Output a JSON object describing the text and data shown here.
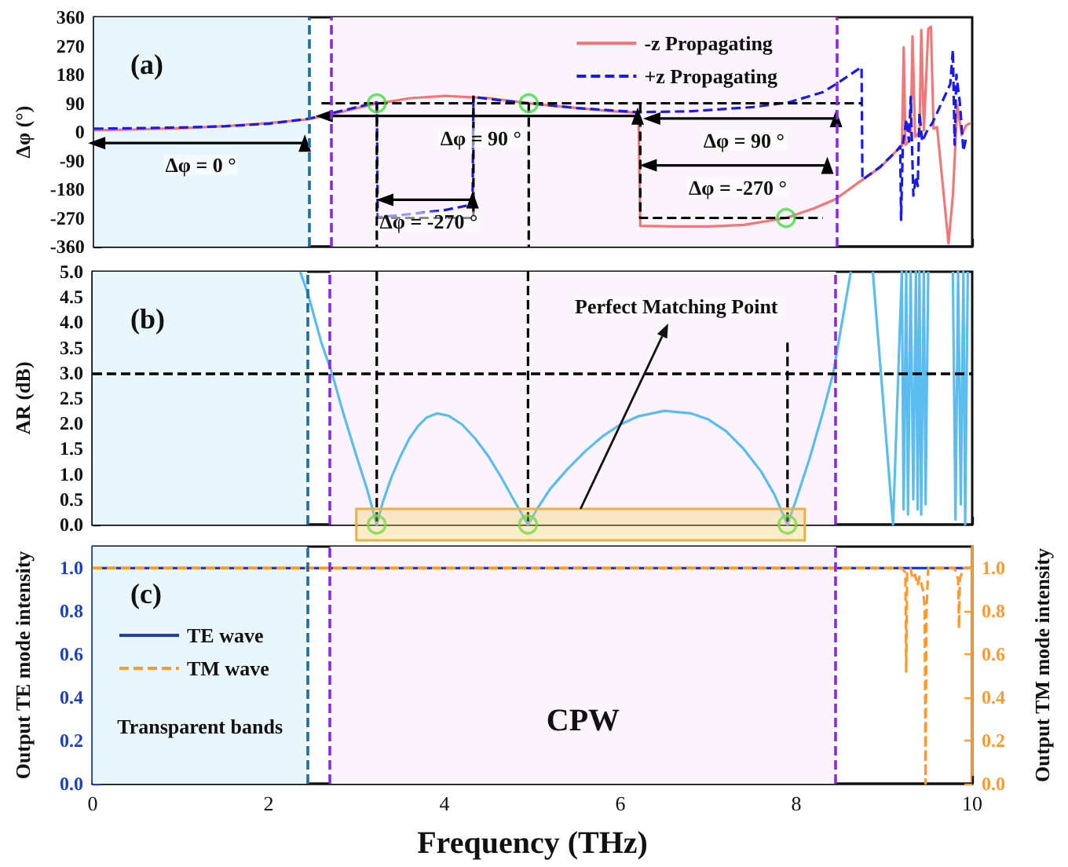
{
  "chart_data": [
    {
      "type": "line",
      "title": "(a)",
      "ylabel": "Δφ (°)",
      "xlim": [
        0,
        10
      ],
      "xticks": [
        0,
        2,
        4,
        6,
        8,
        10
      ],
      "ylim": [
        -360,
        360
      ],
      "yticks": [
        -360,
        -270,
        -180,
        -90,
        0,
        90,
        180,
        270,
        360
      ],
      "tick_labels": "y",
      "legend": "top right",
      "bands": [
        {
          "axis": "x",
          "from": 0,
          "to": 2.44,
          "color": "#e9f6fb"
        },
        {
          "axis": "x",
          "from": 2.7,
          "to": 8.45,
          "color": "#fbf4fc"
        }
      ],
      "ref_lines": [
        {
          "axis": "x",
          "value": 2.44,
          "color": "#1f6e9c",
          "line_style": "dashed"
        },
        {
          "axis": "x",
          "value": 2.7,
          "color": "#8a2be2",
          "line_style": "dashed"
        },
        {
          "axis": "x",
          "value": 8.45,
          "color": "#8a2be2",
          "line_style": "dashed"
        }
      ],
      "annotations": [
        "Δφ = 0 °",
        "Δφ = 90 °",
        "Δφ = -270 °",
        "Δφ = 90 °",
        "Δφ = -270 °"
      ],
      "series": [
        {
          "name": "-z Propagating",
          "color": "#f07878",
          "x": [
            0,
            0.5,
            1,
            1.5,
            2,
            2.45,
            2.8,
            3.2,
            3.6,
            4,
            4.5,
            4.95,
            5.5,
            5.9,
            6.2,
            6.22,
            6.6,
            7,
            7.4,
            7.88,
            8.2,
            8.45,
            8.7,
            8.95,
            9.14,
            9.2,
            9.22,
            9.24,
            9.3,
            9.32,
            9.35,
            9.4,
            9.42,
            9.45,
            9.5,
            9.53,
            9.56,
            9.6,
            9.73,
            9.78,
            9.83,
            9.88,
            9.93,
            9.98
          ],
          "values": [
            5,
            8,
            12,
            18,
            28,
            40,
            62,
            88,
            106,
            113,
            106,
            90,
            75,
            65,
            60,
            -295,
            -297,
            -297,
            -292,
            -270,
            -240,
            -210,
            -160,
            -112,
            -59,
            -45,
            266,
            -40,
            -25,
            300,
            -15,
            0,
            320,
            5,
            324,
            330,
            10,
            15,
            -350,
            -200,
            85,
            -10,
            20,
            28
          ]
        },
        {
          "name": "+z Propagating",
          "color": "#1a1aee",
          "line_style": "dashed",
          "x": [
            0,
            0.5,
            1,
            1.5,
            2,
            2.45,
            2.8,
            3.22,
            3.23,
            3.6,
            4,
            4.31,
            4.32,
            4.6,
            4.95,
            5.5,
            6.2,
            6.8,
            7.5,
            7.9,
            8.3,
            8.45,
            8.74,
            8.75,
            8.95,
            9.14,
            9.18,
            9.19,
            9.21,
            9.25,
            9.28,
            9.3,
            9.33,
            9.36,
            9.38,
            9.4,
            9.43,
            9.48,
            9.55,
            9.65,
            9.75,
            9.78,
            9.8,
            9.82,
            9.86,
            9.9,
            9.93
          ],
          "values": [
            10,
            12,
            14,
            18,
            26,
            42,
            65,
            93,
            -268,
            -258,
            -245,
            -228,
            110,
            100,
            90,
            75,
            62,
            65,
            78,
            92,
            125,
            150,
            204,
            -150,
            -110,
            -59,
            -45,
            -276,
            -40,
            40,
            -30,
            110,
            -200,
            -140,
            -170,
            60,
            -30,
            0,
            30,
            90,
            150,
            258,
            -40,
            180,
            90,
            -60,
            -20
          ]
        },
        {
          "color": "#000000",
          "line_style": "dashed",
          "x": [
            2.59,
            8.74,
            5,
            3.22,
            4.32,
            4.32,
            5,
            6.22,
            6.22,
            8.3
          ],
          "values": [
            90,
            90,
            null,
            -270,
            -270,
            114,
            null,
            90,
            -270,
            -270
          ]
        },
        {
          "color": "#000000",
          "line_style": "dashed",
          "x": [
            3.22,
            3.22,
            4,
            4.95,
            4.95
          ],
          "values": [
            90,
            -360,
            null,
            90,
            -360
          ]
        },
        {
          "color": "#000000",
          "marker": "triangle",
          "x": [
            0.03,
            2.4
          ],
          "values": [
            -35,
            -35
          ]
        },
        {
          "color": "#000000",
          "marker": "triangle",
          "x": [
            2.62,
            6.19
          ],
          "values": [
            50,
            50
          ]
        },
        {
          "color": "#000000",
          "marker": "triangle",
          "x": [
            3.31,
            4.31
          ],
          "values": [
            -213,
            -213
          ]
        },
        {
          "color": "#000000",
          "marker": "triangle",
          "x": [
            6.35,
            8.45
          ],
          "values": [
            42,
            42
          ]
        },
        {
          "color": "#000000",
          "marker": "triangle",
          "x": [
            6.31,
            8.35
          ],
          "values": [
            -105,
            -105
          ]
        },
        {
          "type": "scatter",
          "color": "#44dd44",
          "marker": "circle",
          "x": [
            3.22,
            4.95,
            7.88
          ],
          "values": [
            90,
            90,
            -270
          ]
        }
      ]
    },
    {
      "type": "line",
      "title": "(b)",
      "ylabel": "AR (dB)",
      "xlim": [
        0,
        10
      ],
      "xticks": [
        0,
        2,
        4,
        6,
        8,
        10
      ],
      "ylim": [
        0,
        5
      ],
      "yticks": [
        {
          "value": 0,
          "label": "0.0"
        },
        {
          "value": 0.5,
          "label": "0.5"
        },
        {
          "value": 1,
          "label": "1.0"
        },
        {
          "value": 1.5,
          "label": "1.5"
        },
        {
          "value": 2,
          "label": "2.0"
        },
        {
          "value": 2.5,
          "label": "2.5"
        },
        {
          "value": 3,
          "label": "3.0"
        },
        {
          "value": 3.5,
          "label": "3.5"
        },
        {
          "value": 4,
          "label": "4.0"
        },
        {
          "value": 4.5,
          "label": "4.5"
        },
        {
          "value": 5,
          "label": "5.0"
        }
      ],
      "tick_labels": "y",
      "bands": [
        {
          "axis": "x",
          "from": 0,
          "to": 2.44,
          "color": "#e9f6fb"
        },
        {
          "axis": "x",
          "from": 2.7,
          "to": 8.45,
          "color": "#fbf4fc"
        }
      ],
      "ref_lines": [
        {
          "axis": "x",
          "value": 2.44,
          "color": "#1f6e9c",
          "line_style": "dashed"
        },
        {
          "axis": "x",
          "value": 2.7,
          "color": "#8a2be2",
          "line_style": "dashed"
        },
        {
          "axis": "x",
          "value": 8.45,
          "color": "#8a2be2",
          "line_style": "dashed"
        },
        {
          "axis": "y",
          "value": 3,
          "color": "#000000",
          "line_style": "dashed"
        }
      ],
      "annotations": [
        "Perfect Matching Point"
      ],
      "series": [
        {
          "color": "#5bbcf0",
          "x": [
            2.36,
            2.45,
            2.6,
            2.72,
            2.85,
            3,
            3.12,
            3.23,
            3.3,
            3.4,
            3.5,
            3.6,
            3.7,
            3.8,
            3.92,
            4.05,
            4.2,
            4.35,
            4.5,
            4.65,
            4.8,
            4.95,
            5.05,
            5.2,
            5.4,
            5.6,
            5.8,
            6,
            6.2,
            6.5,
            6.8,
            7,
            7.2,
            7.4,
            7.6,
            7.75,
            7.9,
            8,
            8.15,
            8.3,
            8.42,
            8.52,
            8.62,
            8.75,
            8.87,
            9.1,
            9.2,
            9.22,
            9.25,
            9.27,
            9.3,
            9.33,
            9.36,
            9.38,
            9.4,
            9.42,
            9.45,
            9.47,
            9.5,
            9.65,
            9.78,
            9.81,
            9.84,
            9.87,
            9.9,
            9.92,
            9.95
          ],
          "values": [
            5,
            4.55,
            3.6,
            3,
            2.2,
            1.35,
            0.7,
            0,
            0.45,
            0.95,
            1.35,
            1.7,
            1.95,
            2.12,
            2.2,
            2.15,
            1.98,
            1.7,
            1.35,
            0.92,
            0.45,
            0,
            0.3,
            0.7,
            1.1,
            1.45,
            1.75,
            1.98,
            2.14,
            2.25,
            2.2,
            2.08,
            1.85,
            1.5,
            1.05,
            0.6,
            0,
            0.5,
            1.3,
            2.2,
            3,
            4,
            5,
            null,
            5,
            0,
            5,
            0.3,
            5,
            0.2,
            5,
            0.5,
            5,
            0.3,
            5,
            0.2,
            5,
            0.4,
            5,
            null,
            5,
            0.1,
            5,
            0.4,
            5,
            0,
            5
          ]
        },
        {
          "color": "#000000",
          "line_style": "dashed",
          "x": [
            3.23,
            3.23,
            4,
            4.95,
            4.95,
            6,
            7.9,
            7.9
          ],
          "values": [
            5,
            0,
            null,
            5,
            0,
            null,
            3.6,
            0
          ]
        },
        {
          "type": "scatter",
          "color": "#44dd44",
          "marker": "circle",
          "x": [
            3.23,
            4.95,
            7.9
          ],
          "values": [
            0,
            0,
            0
          ]
        }
      ]
    },
    {
      "type": "line",
      "title": "(c)",
      "xlabel": "Frequency (THz)",
      "ylabel": "Output TE mode intensity",
      "y2label": "Output TM mode intensity",
      "xlim": [
        0,
        10
      ],
      "xticks": [
        0,
        2,
        4,
        6,
        8,
        10
      ],
      "ylim": [
        0,
        1.1
      ],
      "yticks": [
        {
          "value": 0,
          "label": "0.0"
        },
        {
          "value": 0.2,
          "label": "0.2"
        },
        {
          "value": 0.4,
          "label": "0.4"
        },
        {
          "value": 0.6,
          "label": "0.6"
        },
        {
          "value": 0.8,
          "label": "0.8"
        },
        {
          "value": 1,
          "label": "1.0"
        }
      ],
      "y2lim": [
        0,
        1.1
      ],
      "y2ticks": [
        {
          "value": 0,
          "label": "0.0"
        },
        {
          "value": 0.2,
          "label": "0.2"
        },
        {
          "value": 0.4,
          "label": "0.4"
        },
        {
          "value": 0.6,
          "label": "0.6"
        },
        {
          "value": 0.8,
          "label": "0.8"
        },
        {
          "value": 1,
          "label": "1.0"
        }
      ],
      "legend": "left",
      "bands": [
        {
          "axis": "x",
          "from": 0,
          "to": 2.44,
          "color": "#e9f6fb",
          "label": "Transparent bands"
        },
        {
          "axis": "x",
          "from": 2.7,
          "to": 8.45,
          "color": "#fbf4fc",
          "label": "CPW"
        }
      ],
      "ref_lines": [
        {
          "axis": "x",
          "value": 2.44,
          "color": "#1f6e9c",
          "line_style": "dashed"
        },
        {
          "axis": "x",
          "value": 2.7,
          "color": "#8a2be2",
          "line_style": "dashed"
        },
        {
          "axis": "x",
          "value": 8.45,
          "color": "#8a2be2",
          "line_style": "dashed"
        }
      ],
      "series": [
        {
          "name": "TE wave",
          "color": "#1c3fc4",
          "x": [
            0,
            10
          ],
          "values": [
            1,
            1
          ]
        },
        {
          "name": "TM wave",
          "color": "#ff9a2e",
          "axis": "y2",
          "line_style": "dashed",
          "x": [
            0,
            9.2,
            9.24,
            9.25,
            9.26,
            9.3,
            9.32,
            9.35,
            9.38,
            9.4,
            9.42,
            9.44,
            9.46,
            9.47,
            9.48,
            9.5,
            9.8,
            9.84,
            9.85,
            9.86,
            9.9,
            10
          ],
          "values": [
            1,
            1,
            0.98,
            0.52,
            0.98,
            1,
            0.95,
            0.97,
            0.92,
            0.96,
            0.93,
            0.9,
            0.82,
            0,
            0.8,
            1,
            1,
            0.95,
            0.72,
            0.95,
            1,
            1
          ]
        }
      ]
    }
  ]
}
